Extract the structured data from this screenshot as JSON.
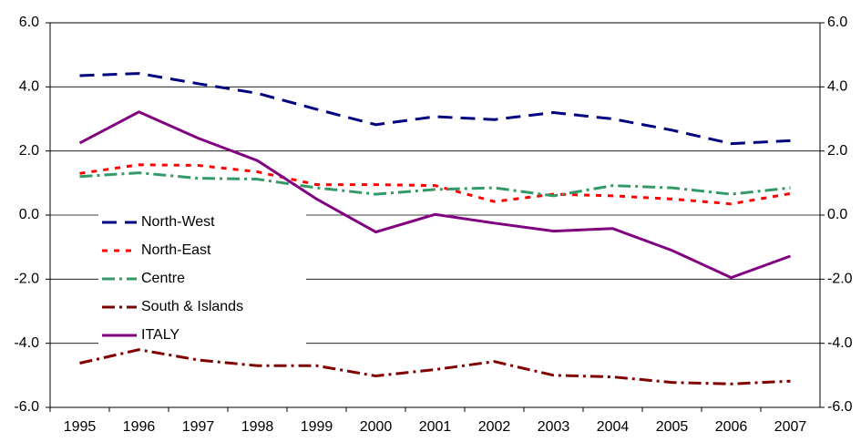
{
  "chart_data": {
    "type": "line",
    "categories": [
      "1995",
      "1996",
      "1997",
      "1998",
      "1999",
      "2000",
      "2001",
      "2002",
      "2003",
      "2004",
      "2005",
      "2006",
      "2007"
    ],
    "series": [
      {
        "name": "North-West",
        "color": "#000080",
        "dash": "16,9",
        "values": [
          4.35,
          4.42,
          4.1,
          3.8,
          3.3,
          2.82,
          3.07,
          2.98,
          3.2,
          3.0,
          2.65,
          2.23,
          2.32
        ]
      },
      {
        "name": "North-East",
        "color": "#ff0000",
        "dash": "6,7",
        "values": [
          1.3,
          1.57,
          1.55,
          1.35,
          0.95,
          0.95,
          0.92,
          0.42,
          0.65,
          0.6,
          0.5,
          0.35,
          0.67
        ]
      },
      {
        "name": "Centre",
        "color": "#339966",
        "dash": "14,5,3,5",
        "values": [
          1.2,
          1.32,
          1.15,
          1.12,
          0.85,
          0.65,
          0.8,
          0.85,
          0.6,
          0.92,
          0.85,
          0.65,
          0.85
        ]
      },
      {
        "name": "South & Islands",
        "color": "#800000",
        "dash": "14,5,3,5",
        "values": [
          -4.62,
          -4.2,
          -4.52,
          -4.7,
          -4.7,
          -5.02,
          -4.82,
          -4.57,
          -5.0,
          -5.05,
          -5.22,
          -5.27,
          -5.18
        ]
      },
      {
        "name": "ITALY",
        "color": "#800080",
        "dash": "none",
        "values": [
          2.25,
          3.22,
          2.4,
          1.7,
          0.5,
          -0.53,
          0.02,
          -0.25,
          -0.5,
          -0.42,
          -1.1,
          -1.95,
          -1.28
        ]
      }
    ],
    "ylim": [
      -6,
      6
    ],
    "yticks": [
      {
        "value": -6,
        "label": "-6.0"
      },
      {
        "value": -4,
        "label": "-4.0"
      },
      {
        "value": -2,
        "label": "-2.0"
      },
      {
        "value": 0,
        "label": "0.0"
      },
      {
        "value": 2,
        "label": "2.0"
      },
      {
        "value": 4,
        "label": "4.0"
      },
      {
        "value": 6,
        "label": "6.0"
      }
    ],
    "y2lim": [
      -6,
      6
    ],
    "y2ticks": [
      {
        "value": -6,
        "label": "-6.0"
      },
      {
        "value": -4,
        "label": "-4.0"
      },
      {
        "value": -2,
        "label": "-2.0"
      },
      {
        "value": 0,
        "label": "0.0"
      },
      {
        "value": 2,
        "label": "2.0"
      },
      {
        "value": 4,
        "label": "4.0"
      },
      {
        "value": 6,
        "label": "6.0"
      }
    ],
    "grid": true
  }
}
